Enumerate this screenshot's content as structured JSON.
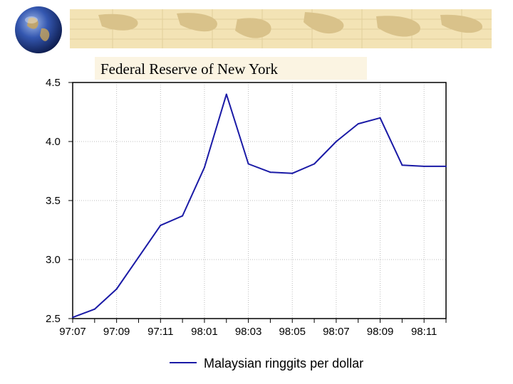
{
  "header": {
    "source": "Federal Reserve of New York"
  },
  "colors": {
    "series_line": "#1a1aa6",
    "banner_bg": "#f3e3b5",
    "banner_land": "#d9c28a",
    "label_bg": "#fbf4e2"
  },
  "icons": {
    "globe": "globe-icon",
    "banner": "world-map-banner"
  },
  "chart_data": {
    "type": "line",
    "title": "",
    "xlabel": "",
    "ylabel": "",
    "ylim": [
      2.5,
      4.5
    ],
    "yticks": [
      "2.5",
      "3.0",
      "3.5",
      "4.0",
      "4.5"
    ],
    "xticks": [
      "97:07",
      "97:09",
      "97:11",
      "98:01",
      "98:03",
      "98:05",
      "98:07",
      "98:09",
      "98:11"
    ],
    "x": [
      "97:07",
      "97:08",
      "97:09",
      "97:10",
      "97:11",
      "97:12",
      "98:01",
      "98:02",
      "98:03",
      "98:04",
      "98:05",
      "98:06",
      "98:07",
      "98:08",
      "98:09",
      "98:10",
      "98:11",
      "98:12"
    ],
    "series": [
      {
        "name": "Malaysian ringgits per dollar",
        "values": [
          2.51,
          2.58,
          2.75,
          3.02,
          3.29,
          3.37,
          3.78,
          4.4,
          3.81,
          3.74,
          3.73,
          3.81,
          4.0,
          4.15,
          4.2,
          3.8,
          3.79,
          3.79
        ]
      }
    ],
    "grid": true,
    "legend": "bottom-center"
  }
}
